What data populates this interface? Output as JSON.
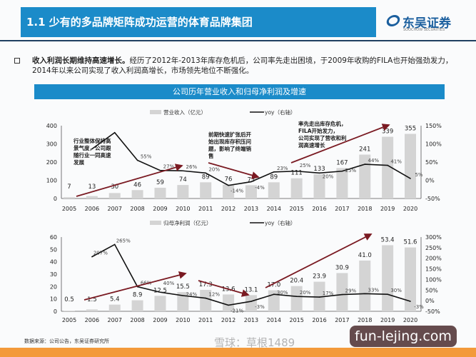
{
  "header": {
    "title": "1.1 少有的多品牌矩阵成功运营的体育品牌集团",
    "logo_cn": "东吴证券",
    "logo_en": "SOOCHOW SECURITIES"
  },
  "bullet": {
    "bold": "收入利润长期维持高速增长。",
    "text": "经历了2012年-2013年库存危机后，公司率先走出困境，于2009年收购的FILA也开始强劲发力，2014年以来公司实现了收入利润高增长，市场领先地位不断强化。"
  },
  "chart_title": "公司历年营业收入和归母净利润及增速",
  "colors": {
    "bar": "#d4d4d4",
    "line": "#111111",
    "arrow": "#7a1a22",
    "accent": "#1b8bc9"
  },
  "chart_data": [
    {
      "type": "bar+line",
      "categories": [
        "2005",
        "2006",
        "2007",
        "2008",
        "2009",
        "2010",
        "2011",
        "2012",
        "2013",
        "2014",
        "2015",
        "2016",
        "2017",
        "2018",
        "2019",
        "2020"
      ],
      "series": [
        {
          "name": "营业收入（亿元）",
          "type": "bar",
          "axis": "left",
          "values": [
            7,
            13,
            30,
            46,
            59,
            74,
            89,
            76,
            73,
            89,
            111,
            133,
            167,
            241,
            339,
            355
          ],
          "labels": [
            "7",
            "13",
            "30",
            "46",
            "59",
            "74",
            "89",
            "76",
            "73",
            "89",
            "111",
            "133",
            "167",
            "241",
            "339",
            "355"
          ]
        },
        {
          "name": "yoy（右轴）",
          "type": "line",
          "axis": "right",
          "values": [
            null,
            86,
            131,
            55,
            27,
            26,
            20,
            -14,
            -4,
            23,
            25,
            20,
            25,
            44,
            41,
            5
          ],
          "labels": [
            "",
            "",
            "",
            "55%",
            "27%",
            "26%",
            "20%",
            "-14%",
            "-4%",
            "23%",
            "25%",
            "20%",
            "25%",
            "44%",
            "41%",
            "5%"
          ]
        }
      ],
      "ylim": [
        0,
        400
      ],
      "yticks": [
        "0",
        "100",
        "200",
        "300",
        "400"
      ],
      "y2lim": [
        -50,
        150
      ],
      "y2ticks": [
        "-50%",
        "0%",
        "50%",
        "100%",
        "150%"
      ],
      "legend": "top",
      "annotations": [
        "行业整体保持高景气度，公司跟随行业一同高速发展",
        "前期快速扩张后开始出现库存积压问题，影响了终端销售",
        "率先走出库存危机，FILA开始发力，公司实现了营收和利润高速增长"
      ]
    },
    {
      "type": "bar+line",
      "categories": [
        "2005",
        "2006",
        "2007",
        "2008",
        "2009",
        "2010",
        "2011",
        "2012",
        "2013",
        "2014",
        "2015",
        "2016",
        "2017",
        "2018",
        "2019",
        "2020"
      ],
      "series": [
        {
          "name": "归母净利润（亿元）",
          "type": "bar",
          "axis": "left",
          "values": [
            0.5,
            1.5,
            5.4,
            8.9,
            12.5,
            15.5,
            17.3,
            13.6,
            13.1,
            17.0,
            20.4,
            23.9,
            30.9,
            41.0,
            53.4,
            51.6
          ],
          "labels": [
            "0.5",
            "1.5",
            "5.4",
            "8.9",
            "12.5",
            "15.5",
            "17.3",
            "13.6",
            "13.1",
            "17.0",
            "20.4",
            "23.9",
            "30.9",
            "41.0",
            "53.4",
            "51.6"
          ]
        },
        {
          "name": "yoy（右轴）",
          "type": "line",
          "axis": "right",
          "values": [
            null,
            207,
            265,
            66,
            40,
            24,
            12,
            -21,
            -3,
            30,
            20,
            17,
            29,
            33,
            30,
            -3
          ],
          "labels": [
            "",
            "207%",
            "265%",
            "66%",
            "40%",
            "24%",
            "12%",
            "-21%",
            "-3%",
            "30%",
            "20%",
            "17%",
            "29%",
            "33%",
            "30%",
            "-3%"
          ]
        }
      ],
      "ylim": [
        0,
        60
      ],
      "yticks": [
        "0",
        "10",
        "20",
        "30",
        "40",
        "50",
        "60"
      ],
      "y2lim": [
        -50,
        300
      ],
      "y2ticks": [
        "-50%",
        "0%",
        "50%",
        "100%",
        "150%",
        "200%",
        "250%",
        "300%"
      ],
      "legend": "top"
    }
  ],
  "source": "数据来源：公司公告，东吴证券研究所",
  "watermark": "fun-lejing.com",
  "watermark2": "雪球：草根1489"
}
